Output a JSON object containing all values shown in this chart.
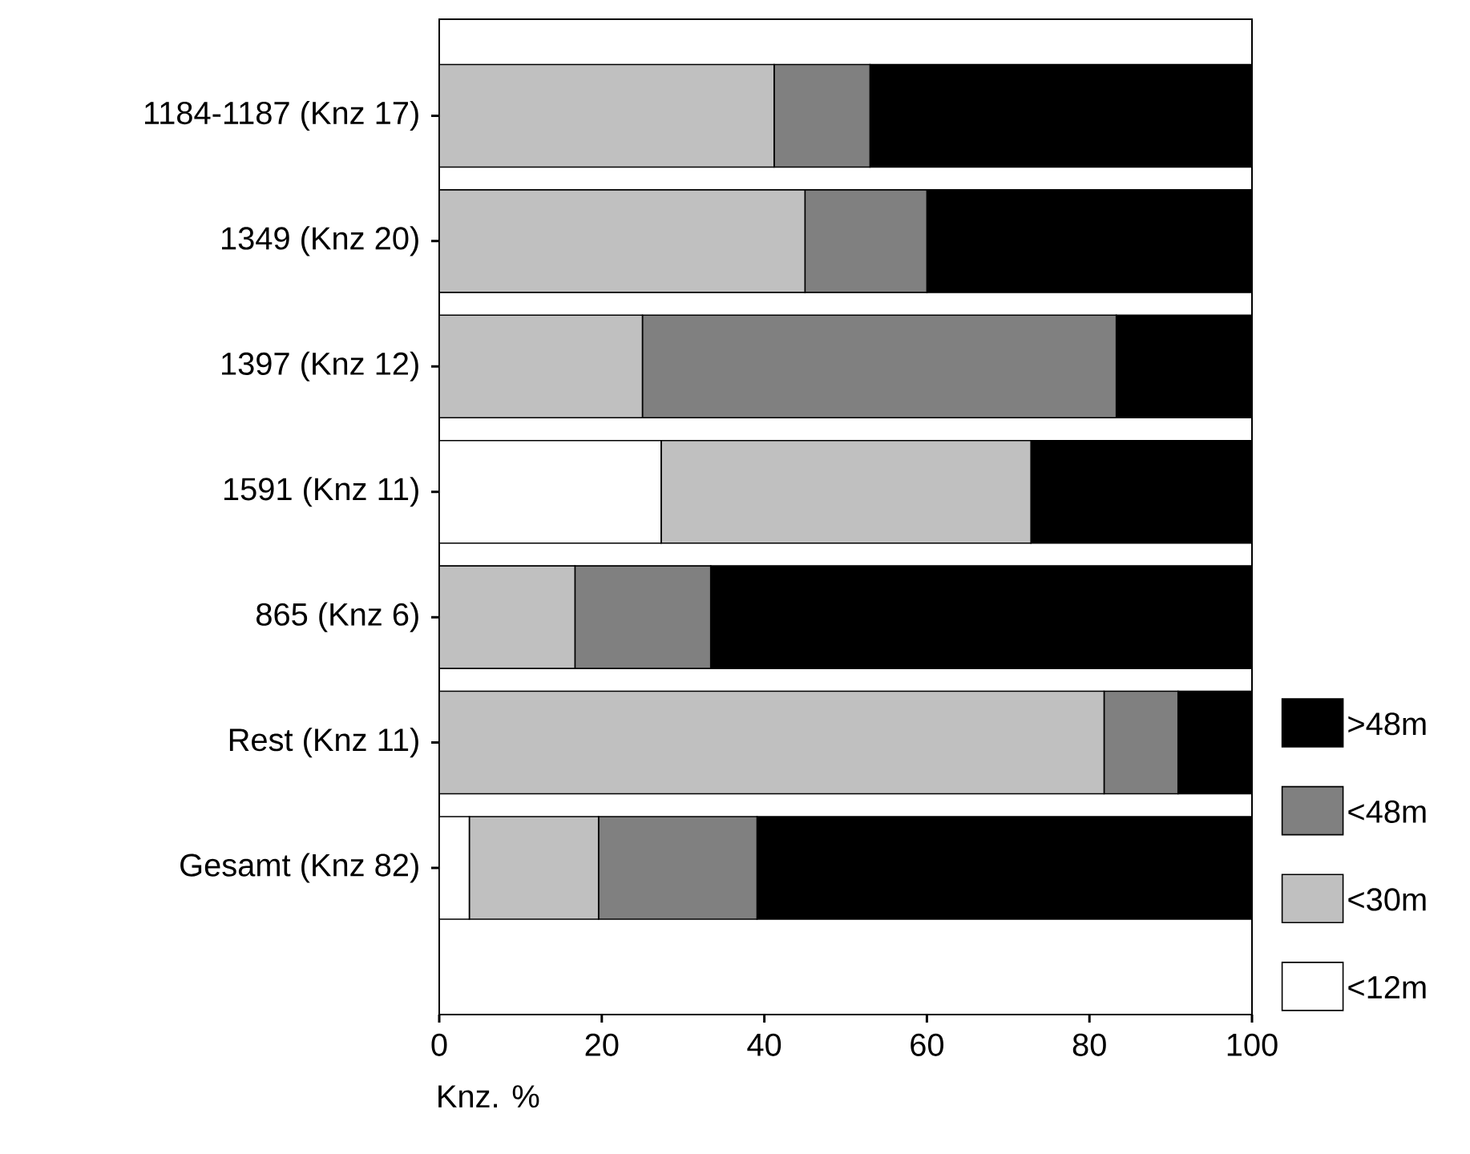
{
  "chart_data": {
    "type": "bar",
    "orientation": "horizontal",
    "stacked": true,
    "xlabel": "Knz. %",
    "categories": [
      "1184-1187 (Knz 17)",
      "1349 (Knz 20)",
      "1397 (Knz 12)",
      "1591 (Knz 11)",
      "865 (Knz 6)",
      "Rest (Knz 11)",
      "Gesamt (Knz 82)"
    ],
    "series": [
      {
        "name": "<12m",
        "color": "#ffffff",
        "values": [
          0,
          0,
          0,
          27.3,
          0,
          0,
          3.7
        ]
      },
      {
        "name": "<30m",
        "color": "#c0c0c0",
        "values": [
          41.2,
          45,
          25,
          45.5,
          16.7,
          81.8,
          15.9
        ]
      },
      {
        "name": "<48m",
        "color": "#808080",
        "values": [
          11.8,
          15,
          58.3,
          0,
          16.7,
          9.1,
          19.5
        ]
      },
      {
        "name": ">48m",
        "color": "#000000",
        "values": [
          47.1,
          40,
          16.7,
          27.3,
          66.7,
          9.1,
          61.0
        ]
      }
    ],
    "xlim": [
      0,
      100
    ],
    "xticks": [
      0,
      20,
      40,
      60,
      80,
      100
    ],
    "grid": false,
    "legend": "right"
  }
}
